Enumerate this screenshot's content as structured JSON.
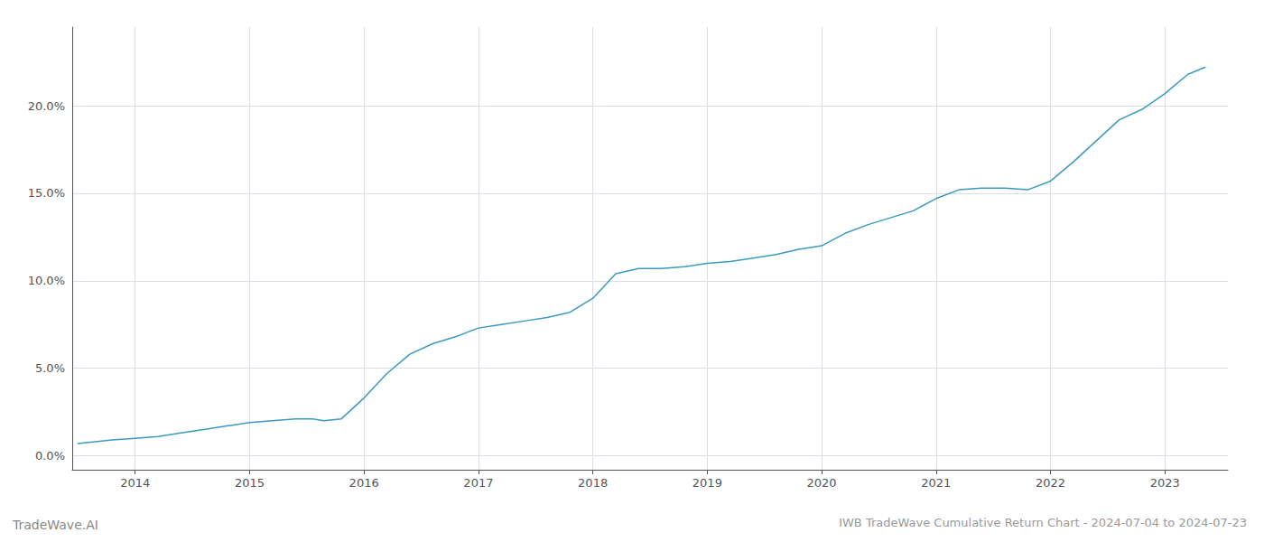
{
  "chart_data": {
    "type": "line",
    "title": "IWB TradeWave Cumulative Return Chart - 2024-07-04 to 2024-07-23",
    "annotations": [
      "TradeWave.AI"
    ],
    "color": "#3a9abf",
    "grid": true,
    "x": [
      2013.5,
      2013.65,
      2013.8,
      2014.0,
      2014.2,
      2014.4,
      2014.6,
      2014.8,
      2015.0,
      2015.2,
      2015.4,
      2015.55,
      2015.65,
      2015.8,
      2016.0,
      2016.2,
      2016.4,
      2016.6,
      2016.8,
      2017.0,
      2017.2,
      2017.4,
      2017.6,
      2017.8,
      2018.0,
      2018.1,
      2018.2,
      2018.4,
      2018.6,
      2018.8,
      2019.0,
      2019.2,
      2019.4,
      2019.6,
      2019.8,
      2020.0,
      2020.2,
      2020.4,
      2020.6,
      2020.8,
      2021.0,
      2021.2,
      2021.4,
      2021.6,
      2021.8,
      2022.0,
      2022.2,
      2022.4,
      2022.6,
      2022.8,
      2023.0,
      2023.2,
      2023.35
    ],
    "values": [
      0.007,
      0.008,
      0.009,
      0.01,
      0.011,
      0.013,
      0.015,
      0.017,
      0.019,
      0.02,
      0.021,
      0.021,
      0.02,
      0.021,
      0.033,
      0.047,
      0.058,
      0.064,
      0.068,
      0.073,
      0.075,
      0.077,
      0.079,
      0.082,
      0.09,
      0.097,
      0.104,
      0.107,
      0.107,
      0.108,
      0.11,
      0.111,
      0.113,
      0.115,
      0.118,
      0.12,
      0.127,
      0.132,
      0.136,
      0.14,
      0.147,
      0.152,
      0.153,
      0.153,
      0.152,
      0.157,
      0.168,
      0.18,
      0.192,
      0.198,
      0.207,
      0.218,
      0.222
    ],
    "xlim": [
      2013.45,
      2023.55
    ],
    "xticks": [
      2014,
      2015,
      2016,
      2017,
      2018,
      2019,
      2020,
      2021,
      2022,
      2023
    ],
    "ylim": [
      -0.008,
      0.245
    ],
    "yticks": [
      {
        "value": 0.0,
        "label": "0.0%"
      },
      {
        "value": 0.05,
        "label": "5.0%"
      },
      {
        "value": 0.1,
        "label": "10.0%"
      },
      {
        "value": 0.15,
        "label": "15.0%"
      },
      {
        "value": 0.2,
        "label": "20.0%"
      }
    ]
  }
}
